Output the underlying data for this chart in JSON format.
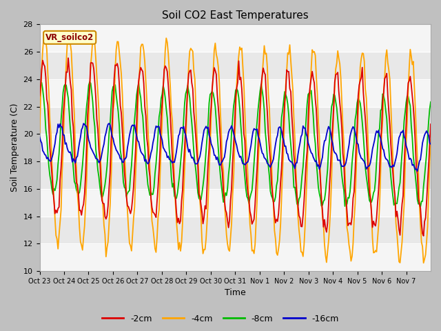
{
  "title": "Soil CO2 East Temperatures",
  "xlabel": "Time",
  "ylabel": "Soil Temperature (C)",
  "ylim": [
    10,
    28
  ],
  "yticks": [
    10,
    12,
    14,
    16,
    18,
    20,
    22,
    24,
    26,
    28
  ],
  "colors": {
    "-2cm": "#dd0000",
    "-4cm": "#ffa500",
    "-8cm": "#00bb00",
    "-16cm": "#0000cc"
  },
  "legend_label": "VR_soilco2",
  "xtick_labels": [
    "Oct 23",
    "Oct 24",
    "Oct 25",
    "Oct 26",
    "Oct 27",
    "Oct 28",
    "Oct 29",
    "Oct 30",
    "Oct 31",
    "Nov 1",
    "Nov 2",
    "Nov 3",
    "Nov 4",
    "Nov 5",
    "Nov 6",
    "Nov 7"
  ],
  "band_colors": [
    "#e8e8e8",
    "#f5f5f5"
  ],
  "fig_bg": "#c8c8c8",
  "plot_bg": "#ffffff"
}
